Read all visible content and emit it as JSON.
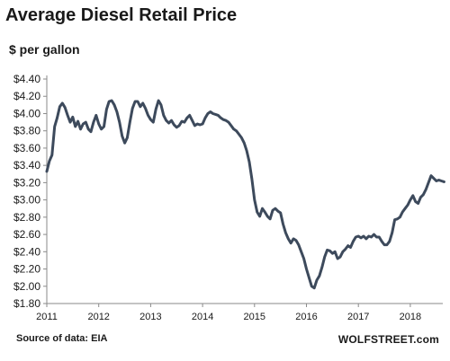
{
  "chart_data": {
    "type": "line",
    "title": "Average Diesel Retail Price",
    "subtitle": "$ per gallon",
    "ylabel": "$ per gallon",
    "xlabel": "",
    "ylim": [
      1.8,
      4.4
    ],
    "xlim": [
      2011.0,
      2018.67
    ],
    "grid": false,
    "yticks": [
      1.8,
      2.0,
      2.2,
      2.4,
      2.6,
      2.8,
      3.0,
      3.2,
      3.4,
      3.6,
      3.8,
      4.0,
      4.2,
      4.4
    ],
    "ytick_labels": [
      "$1.80",
      "$2.00",
      "$2.20",
      "$2.40",
      "$2.60",
      "$2.80",
      "$3.00",
      "$3.20",
      "$3.40",
      "$3.60",
      "$3.80",
      "$4.00",
      "$4.20",
      "$4.40"
    ],
    "xticks": [
      2011,
      2012,
      2013,
      2014,
      2015,
      2016,
      2017,
      2018
    ],
    "xtick_labels": [
      "2011",
      "2012",
      "2013",
      "2014",
      "2015",
      "2016",
      "2017",
      "2018"
    ],
    "line_color": "#3d4a5c",
    "series": [
      {
        "values": [
          [
            2011.0,
            3.33
          ],
          [
            2011.05,
            3.45
          ],
          [
            2011.1,
            3.52
          ],
          [
            2011.15,
            3.85
          ],
          [
            2011.2,
            3.95
          ],
          [
            2011.25,
            4.08
          ],
          [
            2011.3,
            4.12
          ],
          [
            2011.35,
            4.07
          ],
          [
            2011.4,
            3.98
          ],
          [
            2011.45,
            3.9
          ],
          [
            2011.5,
            3.96
          ],
          [
            2011.55,
            3.85
          ],
          [
            2011.6,
            3.91
          ],
          [
            2011.65,
            3.82
          ],
          [
            2011.7,
            3.88
          ],
          [
            2011.75,
            3.9
          ],
          [
            2011.8,
            3.82
          ],
          [
            2011.85,
            3.79
          ],
          [
            2011.9,
            3.9
          ],
          [
            2011.95,
            3.98
          ],
          [
            2012.0,
            3.88
          ],
          [
            2012.05,
            3.82
          ],
          [
            2012.1,
            3.85
          ],
          [
            2012.15,
            4.05
          ],
          [
            2012.2,
            4.14
          ],
          [
            2012.25,
            4.15
          ],
          [
            2012.3,
            4.1
          ],
          [
            2012.35,
            4.02
          ],
          [
            2012.4,
            3.9
          ],
          [
            2012.45,
            3.74
          ],
          [
            2012.5,
            3.66
          ],
          [
            2012.55,
            3.72
          ],
          [
            2012.6,
            3.9
          ],
          [
            2012.65,
            4.06
          ],
          [
            2012.7,
            4.14
          ],
          [
            2012.75,
            4.14
          ],
          [
            2012.8,
            4.08
          ],
          [
            2012.85,
            4.12
          ],
          [
            2012.9,
            4.06
          ],
          [
            2012.95,
            3.98
          ],
          [
            2013.0,
            3.93
          ],
          [
            2013.05,
            3.9
          ],
          [
            2013.1,
            4.05
          ],
          [
            2013.15,
            4.15
          ],
          [
            2013.2,
            4.1
          ],
          [
            2013.25,
            3.98
          ],
          [
            2013.3,
            3.92
          ],
          [
            2013.35,
            3.89
          ],
          [
            2013.4,
            3.92
          ],
          [
            2013.45,
            3.87
          ],
          [
            2013.5,
            3.84
          ],
          [
            2013.55,
            3.86
          ],
          [
            2013.6,
            3.91
          ],
          [
            2013.65,
            3.9
          ],
          [
            2013.7,
            3.95
          ],
          [
            2013.75,
            3.98
          ],
          [
            2013.8,
            3.92
          ],
          [
            2013.85,
            3.86
          ],
          [
            2013.9,
            3.88
          ],
          [
            2013.95,
            3.87
          ],
          [
            2014.0,
            3.88
          ],
          [
            2014.05,
            3.95
          ],
          [
            2014.1,
            4.0
          ],
          [
            2014.15,
            4.02
          ],
          [
            2014.2,
            4.0
          ],
          [
            2014.25,
            3.99
          ],
          [
            2014.3,
            3.98
          ],
          [
            2014.35,
            3.95
          ],
          [
            2014.4,
            3.93
          ],
          [
            2014.45,
            3.92
          ],
          [
            2014.5,
            3.9
          ],
          [
            2014.55,
            3.86
          ],
          [
            2014.6,
            3.82
          ],
          [
            2014.65,
            3.8
          ],
          [
            2014.7,
            3.76
          ],
          [
            2014.75,
            3.72
          ],
          [
            2014.8,
            3.66
          ],
          [
            2014.85,
            3.57
          ],
          [
            2014.9,
            3.44
          ],
          [
            2014.95,
            3.24
          ],
          [
            2015.0,
            3.0
          ],
          [
            2015.05,
            2.86
          ],
          [
            2015.1,
            2.81
          ],
          [
            2015.15,
            2.9
          ],
          [
            2015.2,
            2.86
          ],
          [
            2015.25,
            2.81
          ],
          [
            2015.3,
            2.78
          ],
          [
            2015.35,
            2.88
          ],
          [
            2015.4,
            2.9
          ],
          [
            2015.45,
            2.87
          ],
          [
            2015.5,
            2.85
          ],
          [
            2015.55,
            2.72
          ],
          [
            2015.6,
            2.62
          ],
          [
            2015.65,
            2.55
          ],
          [
            2015.7,
            2.5
          ],
          [
            2015.75,
            2.55
          ],
          [
            2015.8,
            2.53
          ],
          [
            2015.85,
            2.48
          ],
          [
            2015.9,
            2.4
          ],
          [
            2015.95,
            2.32
          ],
          [
            2016.0,
            2.2
          ],
          [
            2016.05,
            2.1
          ],
          [
            2016.1,
            2.0
          ],
          [
            2016.15,
            1.98
          ],
          [
            2016.2,
            2.07
          ],
          [
            2016.25,
            2.12
          ],
          [
            2016.3,
            2.22
          ],
          [
            2016.35,
            2.34
          ],
          [
            2016.4,
            2.42
          ],
          [
            2016.45,
            2.41
          ],
          [
            2016.5,
            2.38
          ],
          [
            2016.55,
            2.4
          ],
          [
            2016.6,
            2.32
          ],
          [
            2016.65,
            2.34
          ],
          [
            2016.7,
            2.4
          ],
          [
            2016.75,
            2.43
          ],
          [
            2016.8,
            2.47
          ],
          [
            2016.85,
            2.45
          ],
          [
            2016.9,
            2.52
          ],
          [
            2016.95,
            2.57
          ],
          [
            2017.0,
            2.58
          ],
          [
            2017.05,
            2.56
          ],
          [
            2017.1,
            2.58
          ],
          [
            2017.15,
            2.55
          ],
          [
            2017.2,
            2.58
          ],
          [
            2017.25,
            2.57
          ],
          [
            2017.3,
            2.6
          ],
          [
            2017.35,
            2.57
          ],
          [
            2017.4,
            2.57
          ],
          [
            2017.45,
            2.52
          ],
          [
            2017.5,
            2.48
          ],
          [
            2017.55,
            2.48
          ],
          [
            2017.6,
            2.52
          ],
          [
            2017.65,
            2.62
          ],
          [
            2017.7,
            2.77
          ],
          [
            2017.75,
            2.78
          ],
          [
            2017.8,
            2.8
          ],
          [
            2017.85,
            2.86
          ],
          [
            2017.9,
            2.9
          ],
          [
            2017.95,
            2.94
          ],
          [
            2018.0,
            3.0
          ],
          [
            2018.05,
            3.05
          ],
          [
            2018.1,
            2.98
          ],
          [
            2018.15,
            2.96
          ],
          [
            2018.2,
            3.03
          ],
          [
            2018.25,
            3.06
          ],
          [
            2018.3,
            3.12
          ],
          [
            2018.35,
            3.2
          ],
          [
            2018.4,
            3.28
          ],
          [
            2018.45,
            3.25
          ],
          [
            2018.5,
            3.22
          ],
          [
            2018.55,
            3.23
          ],
          [
            2018.6,
            3.22
          ],
          [
            2018.65,
            3.21
          ]
        ]
      }
    ]
  },
  "footer": {
    "source": "Source of data: EIA",
    "brand": "WOLFSTREET.com"
  }
}
